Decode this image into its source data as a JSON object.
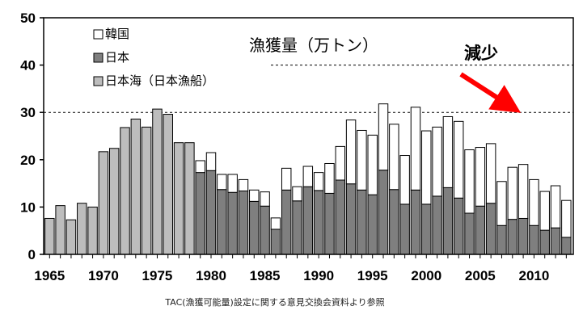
{
  "chart_data": {
    "type": "bar",
    "stacked": true,
    "unit_label": "漁獲量（万トン）",
    "source_note": "TAC(漁獲可能量)設定に関する意見交換会資料より参照",
    "annotation": {
      "text": "減少",
      "color": "#ff0000"
    },
    "legend_placement": "top-left",
    "ylim": [
      0,
      50
    ],
    "y_ticks": [
      "0",
      "10",
      "20",
      "30",
      "40",
      "50"
    ],
    "x_tick_labels": [
      "1965",
      "1970",
      "1975",
      "1980",
      "1985",
      "1990",
      "1995",
      "2000",
      "2005",
      "2010"
    ],
    "gridlines": [
      30,
      40
    ],
    "x": [
      1965,
      1966,
      1967,
      1968,
      1969,
      1970,
      1971,
      1972,
      1973,
      1974,
      1975,
      1976,
      1977,
      1978,
      1979,
      1980,
      1981,
      1982,
      1983,
      1984,
      1985,
      1986,
      1987,
      1988,
      1989,
      1990,
      1991,
      1992,
      1993,
      1994,
      1995,
      1996,
      1997,
      1998,
      1999,
      2000,
      2001,
      2002,
      2003,
      2004,
      2005,
      2006,
      2007,
      2008,
      2009,
      2010,
      2011,
      2012,
      2013
    ],
    "series": [
      {
        "name": "日本海（日本漁船）",
        "color": "#bdbdbd",
        "values": [
          7.6,
          10.3,
          7.3,
          10.8,
          10.0,
          21.7,
          22.4,
          26.8,
          28.6,
          26.9,
          30.7,
          29.6,
          23.6,
          23.6,
          0,
          0,
          0,
          0,
          0,
          0,
          0,
          0,
          0,
          0,
          0,
          0,
          0,
          0,
          0,
          0,
          0,
          0,
          0,
          0,
          0,
          0,
          0,
          0,
          0,
          0,
          0,
          0,
          0,
          0,
          0,
          0,
          0,
          0,
          0
        ]
      },
      {
        "name": "日本",
        "color": "#7f7f7f",
        "values": [
          0,
          0,
          0,
          0,
          0,
          0,
          0,
          0,
          0,
          0,
          0,
          0,
          0,
          0,
          17.3,
          17.7,
          13.7,
          13.1,
          13.4,
          11.2,
          10.2,
          5.3,
          13.6,
          11.3,
          14.3,
          13.5,
          12.9,
          15.7,
          14.9,
          13.6,
          12.6,
          17.8,
          13.7,
          10.6,
          13.6,
          10.6,
          12.3,
          14.1,
          11.9,
          8.7,
          10.2,
          10.8,
          6.1,
          7.4,
          7.6,
          6.1,
          5.1,
          5.6,
          3.6
        ]
      },
      {
        "name": "韓国",
        "color": "#ffffff",
        "values": [
          0,
          0,
          0,
          0,
          0,
          0,
          0,
          0,
          0,
          0,
          0,
          0,
          0,
          0,
          2.5,
          3.8,
          3.2,
          3.8,
          2.4,
          2.4,
          3.0,
          2.4,
          4.6,
          3.0,
          4.3,
          3.8,
          6.3,
          7.1,
          13.5,
          12.6,
          12.6,
          14.0,
          13.8,
          10.3,
          17.5,
          15.5,
          14.6,
          15.0,
          16.2,
          13.4,
          12.4,
          12.6,
          9.3,
          11.0,
          11.4,
          9.7,
          8.2,
          8.9,
          7.8
        ]
      }
    ]
  }
}
